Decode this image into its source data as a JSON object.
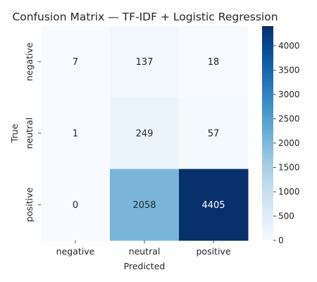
{
  "chart_data": {
    "type": "heatmap",
    "title": "Confusion Matrix — TF-IDF + Logistic Regression",
    "xlabel": "Predicted",
    "ylabel": "True",
    "x_categories": [
      "negative",
      "neutral",
      "positive"
    ],
    "y_categories": [
      "negative",
      "neutral",
      "positive"
    ],
    "values": [
      [
        7,
        137,
        18
      ],
      [
        1,
        249,
        57
      ],
      [
        0,
        2058,
        4405
      ]
    ],
    "colormap": "Blues",
    "vmin": 0,
    "vmax": 4405,
    "colorbar_ticks": [
      0,
      500,
      1000,
      1500,
      2000,
      2500,
      3000,
      3500,
      4000
    ]
  }
}
